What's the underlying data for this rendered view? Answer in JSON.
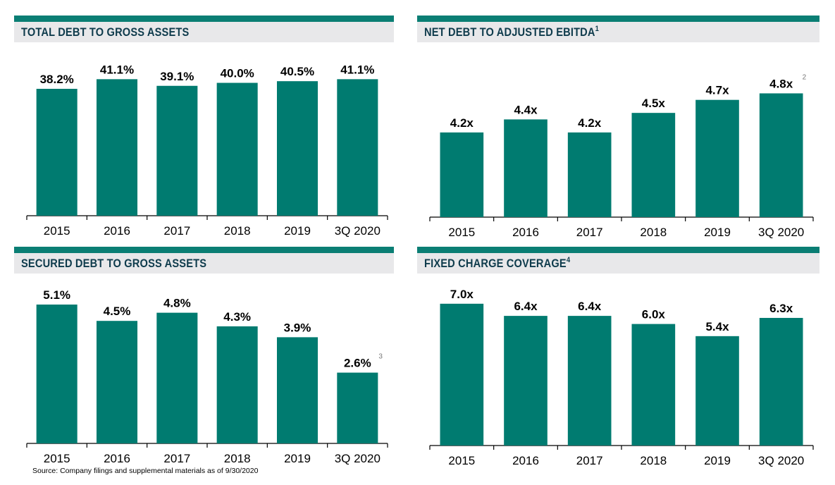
{
  "chart_data": [
    {
      "type": "bar",
      "title": "TOTAL DEBT TO GROSS ASSETS",
      "title_footnote": "",
      "categories": [
        "2015",
        "2016",
        "2017",
        "2018",
        "2019",
        "3Q 2020"
      ],
      "values": [
        38.2,
        41.1,
        39.1,
        40.0,
        40.5,
        41.1
      ],
      "labels": [
        "38.2%",
        "41.1%",
        "39.1%",
        "40.0%",
        "40.5%",
        "41.1%"
      ],
      "label_footnotes": [
        "",
        "",
        "",
        "",
        "",
        ""
      ],
      "unit": "%",
      "ylim": [
        0,
        48.6
      ],
      "xlabel": "",
      "ylabel": "",
      "color": "#007b70"
    },
    {
      "type": "bar",
      "title": "NET DEBT TO ADJUSTED EBITDA",
      "title_footnote": "1",
      "categories": [
        "2015",
        "2016",
        "2017",
        "2018",
        "2019",
        "3Q 2020"
      ],
      "values": [
        4.2,
        4.4,
        4.2,
        4.5,
        4.7,
        4.8
      ],
      "labels": [
        "4.2x",
        "4.4x",
        "4.2x",
        "4.5x",
        "4.7x",
        "4.8x"
      ],
      "label_footnotes": [
        "",
        "",
        "",
        "",
        "",
        "2"
      ],
      "unit": "x",
      "ylim": [
        2.9,
        5.4
      ],
      "xlabel": "",
      "ylabel": "",
      "color": "#007b70"
    },
    {
      "type": "bar",
      "title": "SECURED DEBT TO GROSS ASSETS",
      "title_footnote": "",
      "categories": [
        "2015",
        "2016",
        "2017",
        "2018",
        "2019",
        "3Q 2020"
      ],
      "values": [
        5.1,
        4.5,
        4.8,
        4.3,
        3.9,
        2.6
      ],
      "labels": [
        "5.1%",
        "4.5%",
        "4.8%",
        "4.3%",
        "3.9%",
        "2.6%"
      ],
      "label_footnotes": [
        "",
        "",
        "",
        "",
        "",
        "3"
      ],
      "unit": "%",
      "ylim": [
        0,
        5.8
      ],
      "xlabel": "",
      "ylabel": "",
      "color": "#007b70"
    },
    {
      "type": "bar",
      "title": "FIXED CHARGE COVERAGE",
      "title_footnote": "4",
      "categories": [
        "2015",
        "2016",
        "2017",
        "2018",
        "2019",
        "3Q 2020"
      ],
      "values": [
        7.0,
        6.4,
        6.4,
        6.0,
        5.4,
        6.3
      ],
      "labels": [
        "7.0x",
        "6.4x",
        "6.4x",
        "6.0x",
        "5.4x",
        "6.3x"
      ],
      "label_footnotes": [
        "",
        "",
        "",
        "",
        "",
        ""
      ],
      "unit": "x",
      "ylim": [
        0,
        7.9
      ],
      "xlabel": "",
      "ylabel": "",
      "color": "#007b70"
    }
  ],
  "footer": {
    "source": "Source: Company filings and supplemental materials as of 9/30/2020"
  }
}
